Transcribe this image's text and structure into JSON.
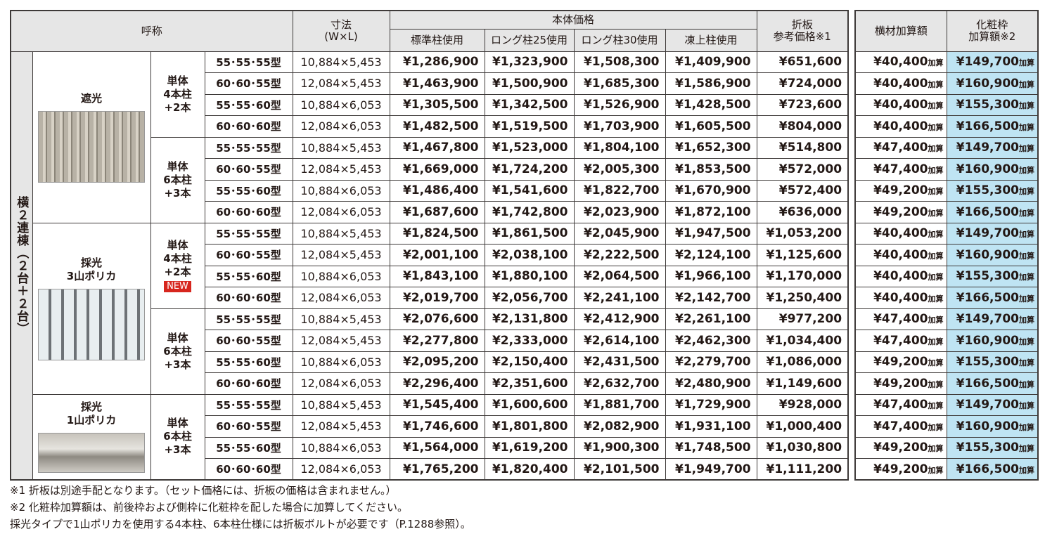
{
  "header": {
    "name": "呼称",
    "size": "寸法\n(W×L)",
    "body_price": "本体価格",
    "price_columns": [
      "標準柱使用",
      "ロング柱25使用",
      "ロング柱30使用",
      "凍上柱使用"
    ],
    "folded": "折板\n参考価格※1",
    "cross": "横材加算額",
    "decor": "化粧枠\n加算額※2"
  },
  "side_label": "横２連棟（２台＋２台）",
  "add_unit": "加算",
  "sections": [
    {
      "label": "遮光",
      "subgroups": [
        {
          "label": "単体\n4本柱\n+2本",
          "rows": [
            [
              "55･55･55型",
              "10,884×5,453",
              "¥1,286,900",
              "¥1,323,900",
              "¥1,508,300",
              "¥1,409,900",
              "¥651,600",
              "¥40,400",
              "¥149,700"
            ],
            [
              "60･60･55型",
              "12,084×5,453",
              "¥1,463,900",
              "¥1,500,900",
              "¥1,685,300",
              "¥1,586,900",
              "¥724,000",
              "¥40,400",
              "¥160,900"
            ],
            [
              "55･55･60型",
              "10,884×6,053",
              "¥1,305,500",
              "¥1,342,500",
              "¥1,526,900",
              "¥1,428,500",
              "¥723,600",
              "¥40,400",
              "¥155,300"
            ],
            [
              "60･60･60型",
              "12,084×6,053",
              "¥1,482,500",
              "¥1,519,500",
              "¥1,703,900",
              "¥1,605,500",
              "¥804,000",
              "¥40,400",
              "¥166,500"
            ]
          ]
        },
        {
          "label": "単体\n6本柱\n+3本",
          "rows": [
            [
              "55･55･55型",
              "10,884×5,453",
              "¥1,467,800",
              "¥1,523,000",
              "¥1,804,100",
              "¥1,652,300",
              "¥514,800",
              "¥47,400",
              "¥149,700"
            ],
            [
              "60･60･55型",
              "12,084×5,453",
              "¥1,669,000",
              "¥1,724,200",
              "¥2,005,300",
              "¥1,853,500",
              "¥572,000",
              "¥47,400",
              "¥160,900"
            ],
            [
              "55･55･60型",
              "10,884×6,053",
              "¥1,486,400",
              "¥1,541,600",
              "¥1,822,700",
              "¥1,670,900",
              "¥572,400",
              "¥49,200",
              "¥155,300"
            ],
            [
              "60･60･60型",
              "12,084×6,053",
              "¥1,687,600",
              "¥1,742,800",
              "¥2,023,900",
              "¥1,872,100",
              "¥636,000",
              "¥49,200",
              "¥166,500"
            ]
          ]
        }
      ]
    },
    {
      "label": "採光\n3山ポリカ",
      "subgroups": [
        {
          "label": "単体\n4本柱\n+2本",
          "badge": "NEW",
          "rows": [
            [
              "55･55･55型",
              "10,884×5,453",
              "¥1,824,500",
              "¥1,861,500",
              "¥2,045,900",
              "¥1,947,500",
              "¥1,053,200",
              "¥40,400",
              "¥149,700"
            ],
            [
              "60･60･55型",
              "12,084×5,453",
              "¥2,001,100",
              "¥2,038,100",
              "¥2,222,500",
              "¥2,124,100",
              "¥1,125,600",
              "¥40,400",
              "¥160,900"
            ],
            [
              "55･55･60型",
              "10,884×6,053",
              "¥1,843,100",
              "¥1,880,100",
              "¥2,064,500",
              "¥1,966,100",
              "¥1,170,000",
              "¥40,400",
              "¥155,300"
            ],
            [
              "60･60･60型",
              "12,084×6,053",
              "¥2,019,700",
              "¥2,056,700",
              "¥2,241,100",
              "¥2,142,700",
              "¥1,250,400",
              "¥40,400",
              "¥166,500"
            ]
          ]
        },
        {
          "label": "単体\n6本柱\n+3本",
          "rows": [
            [
              "55･55･55型",
              "10,884×5,453",
              "¥2,076,600",
              "¥2,131,800",
              "¥2,412,900",
              "¥2,261,100",
              "¥977,200",
              "¥47,400",
              "¥149,700"
            ],
            [
              "60･60･55型",
              "12,084×5,453",
              "¥2,277,800",
              "¥2,333,000",
              "¥2,614,100",
              "¥2,462,300",
              "¥1,034,400",
              "¥47,400",
              "¥160,900"
            ],
            [
              "55･55･60型",
              "10,884×6,053",
              "¥2,095,200",
              "¥2,150,400",
              "¥2,431,500",
              "¥2,279,700",
              "¥1,086,000",
              "¥49,200",
              "¥155,300"
            ],
            [
              "60･60･60型",
              "12,084×6,053",
              "¥2,296,400",
              "¥2,351,600",
              "¥2,632,700",
              "¥2,480,900",
              "¥1,149,600",
              "¥49,200",
              "¥166,500"
            ]
          ]
        }
      ]
    },
    {
      "label": "採光\n1山ポリカ",
      "subgroups": [
        {
          "label": "単体\n6本柱\n+3本",
          "rows": [
            [
              "55･55･55型",
              "10,884×5,453",
              "¥1,545,400",
              "¥1,600,600",
              "¥1,881,700",
              "¥1,729,900",
              "¥928,000",
              "¥47,400",
              "¥149,700"
            ],
            [
              "60･60･55型",
              "12,084×5,453",
              "¥1,746,600",
              "¥1,801,800",
              "¥2,082,900",
              "¥1,931,100",
              "¥1,000,400",
              "¥47,400",
              "¥160,900"
            ],
            [
              "55･55･60型",
              "10,884×6,053",
              "¥1,564,000",
              "¥1,619,200",
              "¥1,900,300",
              "¥1,748,500",
              "¥1,030,800",
              "¥49,200",
              "¥155,300"
            ],
            [
              "60･60･60型",
              "12,084×6,053",
              "¥1,765,200",
              "¥1,820,400",
              "¥2,101,500",
              "¥1,949,700",
              "¥1,111,200",
              "¥49,200",
              "¥166,500"
            ]
          ]
        }
      ]
    }
  ],
  "footnotes": [
    "※1 折板は別途手配となります。（セット価格には、折板の価格は含まれません。）",
    "※2 化粧枠加算額は、前後枠および側枠に化粧枠を配した場合に加算してください。",
    "採光タイプで1山ポリカを使用する4本柱、6本柱仕様には折板ボルトが必要です（P.1288参照）。"
  ]
}
